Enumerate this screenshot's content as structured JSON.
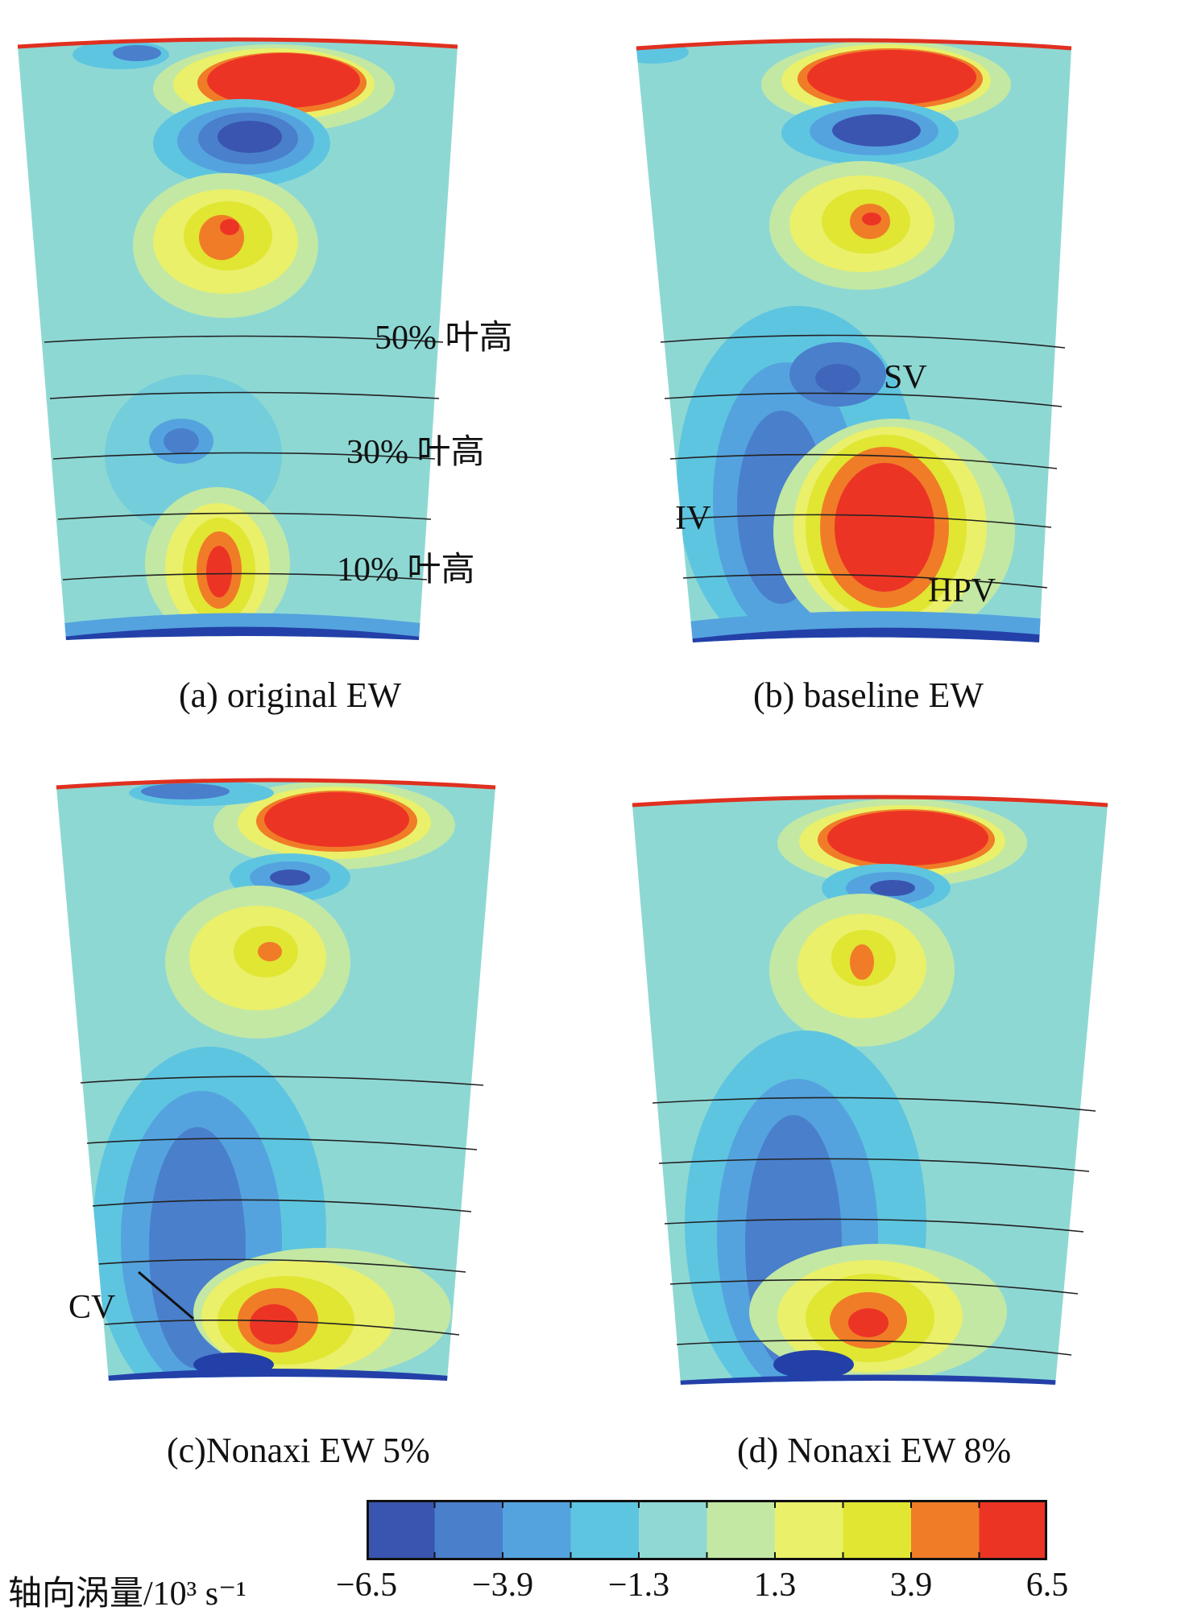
{
  "panels": [
    {
      "id": "a",
      "caption": "(a) original EW",
      "labels": [
        "50% 叶高",
        "30% 叶高",
        "10% 叶高"
      ]
    },
    {
      "id": "b",
      "caption": "(b) baseline EW",
      "labels": [
        "SV",
        "IV",
        "HPV"
      ]
    },
    {
      "id": "c",
      "caption": "(c)Nonaxi EW 5%",
      "labels": [
        "CV"
      ]
    },
    {
      "id": "d",
      "caption": "(d) Nonaxi EW 8%",
      "labels": []
    }
  ],
  "colorbar": {
    "label": "轴向涡量/10³ s⁻¹",
    "ticks": [
      "−6.5",
      "−3.9",
      "−1.3",
      "1.3",
      "3.9",
      "6.5"
    ],
    "colors": [
      "#3a55b0",
      "#4a7fcc",
      "#54a3de",
      "#5ec5e0",
      "#8fd8d4",
      "#c2e8a4",
      "#eaf06a",
      "#e0e632",
      "#f07c28",
      "#ec3425"
    ]
  },
  "colors": {
    "background_field": "#8ed8d4",
    "hub_band": "#2340a8",
    "tip_line": "#e03020"
  }
}
